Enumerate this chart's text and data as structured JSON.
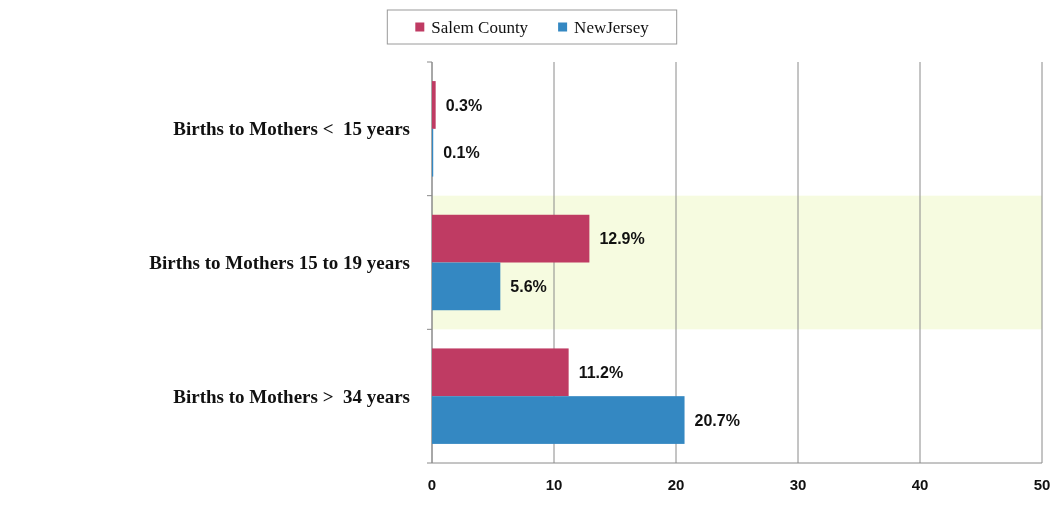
{
  "chart_data": {
    "type": "bar",
    "orientation": "horizontal",
    "categories": [
      "Births to Mothers <  15 years",
      "Births to Mothers 15 to 19 years",
      "Births to Mothers >  34 years"
    ],
    "series": [
      {
        "name": "Salem County",
        "color": "#bf3b63",
        "values": [
          0.3,
          12.9,
          11.2
        ],
        "value_labels": [
          "0.3%",
          "12.9%",
          "11.2%"
        ]
      },
      {
        "name": "NewJersey",
        "color": "#3488c2",
        "values": [
          0.1,
          5.6,
          20.7
        ],
        "value_labels": [
          "0.1%",
          "5.6%",
          "20.7%"
        ]
      }
    ],
    "xlim": [
      0,
      50
    ],
    "xticks": [
      0,
      10,
      20,
      30,
      40,
      50
    ],
    "grid": "x",
    "legend": "top",
    "bands": [
      {
        "axis": "y",
        "from": "Births to Mothers 15 to 19 years",
        "to": "Births to Mothers 15 to 19 years",
        "color": "#f6fbe0"
      }
    ]
  }
}
